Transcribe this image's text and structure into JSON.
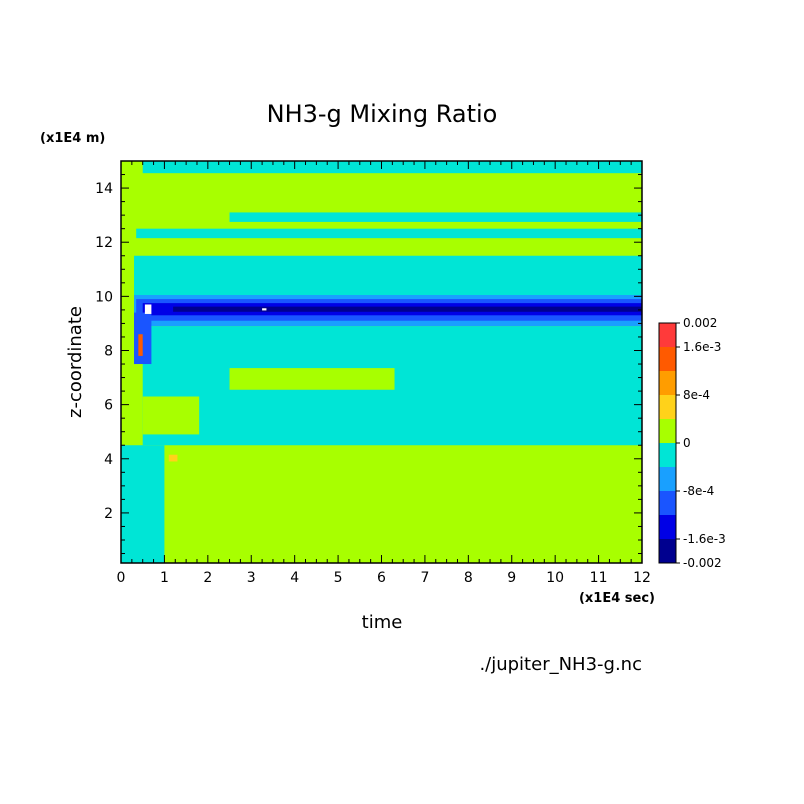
{
  "chart_data": {
    "type": "heatmap",
    "title": "NH3-g Mixing Ratio",
    "xlabel": "time",
    "ylabel": "z-coordinate",
    "x_scale_label": "(x1E4 sec)",
    "y_scale_label": "(x1E4 m)",
    "xlim": [
      0,
      12
    ],
    "ylim": [
      0.15,
      15
    ],
    "x_ticks": [
      "0",
      "1",
      "2",
      "3",
      "4",
      "5",
      "6",
      "7",
      "8",
      "9",
      "10",
      "11",
      "12"
    ],
    "y_ticks": [
      "2",
      "4",
      "6",
      "8",
      "10",
      "12",
      "14"
    ],
    "source_file": "./jupiter_NH3-g.nc",
    "colorbar": {
      "levels": [
        -0.002,
        -0.0016,
        -0.0012,
        -0.0008,
        -0.0004,
        0,
        0.0004,
        0.0008,
        0.0012,
        0.0016,
        0.002
      ],
      "colors": [
        "#00008f",
        "#0000e6",
        "#1a55ff",
        "#19a0ff",
        "#00e5d6",
        "#a8ff00",
        "#ffd21a",
        "#ff9d00",
        "#ff5a00",
        "#ff3a3a"
      ],
      "tick_labels": [
        {
          "value": 0.002,
          "label": "0.002"
        },
        {
          "value": 0.0016,
          "label": "1.6e-3"
        },
        {
          "value": 0.0008,
          "label": "8e-4"
        },
        {
          "value": 0,
          "label": "0"
        },
        {
          "value": -0.0008,
          "label": "-8e-4"
        },
        {
          "value": -0.0016,
          "label": "-1.6e-3"
        },
        {
          "value": -0.002,
          "label": "-0.002"
        }
      ]
    },
    "background_color": "#a8ff00",
    "regions": [
      {
        "name": "band-cyan-lower",
        "x0": 0.5,
        "x1": 12,
        "y0": 4.5,
        "y1": 8.9,
        "color": "#00e5d6"
      },
      {
        "name": "band-light-blue-9",
        "x0": 0.3,
        "x1": 12,
        "y0": 8.9,
        "y1": 10.05,
        "color": "#19a0ff"
      },
      {
        "name": "band-blue-9",
        "x0": 0.35,
        "x1": 12,
        "y0": 9.1,
        "y1": 9.9,
        "color": "#1a55ff"
      },
      {
        "name": "band-dark-blue-9",
        "x0": 0.5,
        "x1": 12,
        "y0": 9.3,
        "y1": 9.75,
        "color": "#0000e6"
      },
      {
        "name": "band-navy-9",
        "x0": 1.2,
        "x1": 12,
        "y0": 9.43,
        "y1": 9.62,
        "color": "#00008f"
      },
      {
        "name": "band-cyan-10",
        "x0": 0.3,
        "x1": 12,
        "y0": 10.05,
        "y1": 11.5,
        "color": "#00e5d6"
      },
      {
        "name": "band-cyan-12",
        "x0": 0.35,
        "x1": 12,
        "y0": 12.15,
        "y1": 12.5,
        "color": "#00e5d6"
      },
      {
        "name": "band-cyan-13",
        "x0": 2.5,
        "x1": 12,
        "y0": 12.75,
        "y1": 13.1,
        "color": "#00e5d6"
      },
      {
        "name": "band-cyan-14",
        "x0": 0.5,
        "x1": 12,
        "y0": 14.55,
        "y1": 15,
        "color": "#00e5d6"
      },
      {
        "name": "island-green-7",
        "x0": 2.5,
        "x1": 6.3,
        "y0": 6.55,
        "y1": 7.35,
        "color": "#a8ff00"
      },
      {
        "name": "island-green-5",
        "x0": 0.5,
        "x1": 1.8,
        "y0": 4.9,
        "y1": 6.3,
        "color": "#a8ff00"
      },
      {
        "name": "early-cyan-wedge",
        "x0": 0,
        "x1": 1.0,
        "y0": 0.15,
        "y1": 4.5,
        "color": "#00e5d6"
      },
      {
        "name": "early-blue-8",
        "x0": 0.3,
        "x1": 0.7,
        "y0": 7.5,
        "y1": 9.4,
        "color": "#1a55ff"
      },
      {
        "name": "early-red-8",
        "x0": 0.4,
        "x1": 0.5,
        "y0": 7.8,
        "y1": 8.6,
        "color": "#ff5a00"
      },
      {
        "name": "spot-orange-4",
        "x0": 1.1,
        "x1": 1.3,
        "y0": 3.9,
        "y1": 4.15,
        "color": "#ffd21a"
      },
      {
        "name": "spot-white-9a",
        "x0": 0.55,
        "x1": 0.7,
        "y0": 9.35,
        "y1": 9.7,
        "color": "#ffffff"
      },
      {
        "name": "spot-white-9b",
        "x0": 3.25,
        "x1": 3.35,
        "y0": 9.48,
        "y1": 9.56,
        "color": "#ffffff"
      }
    ]
  }
}
